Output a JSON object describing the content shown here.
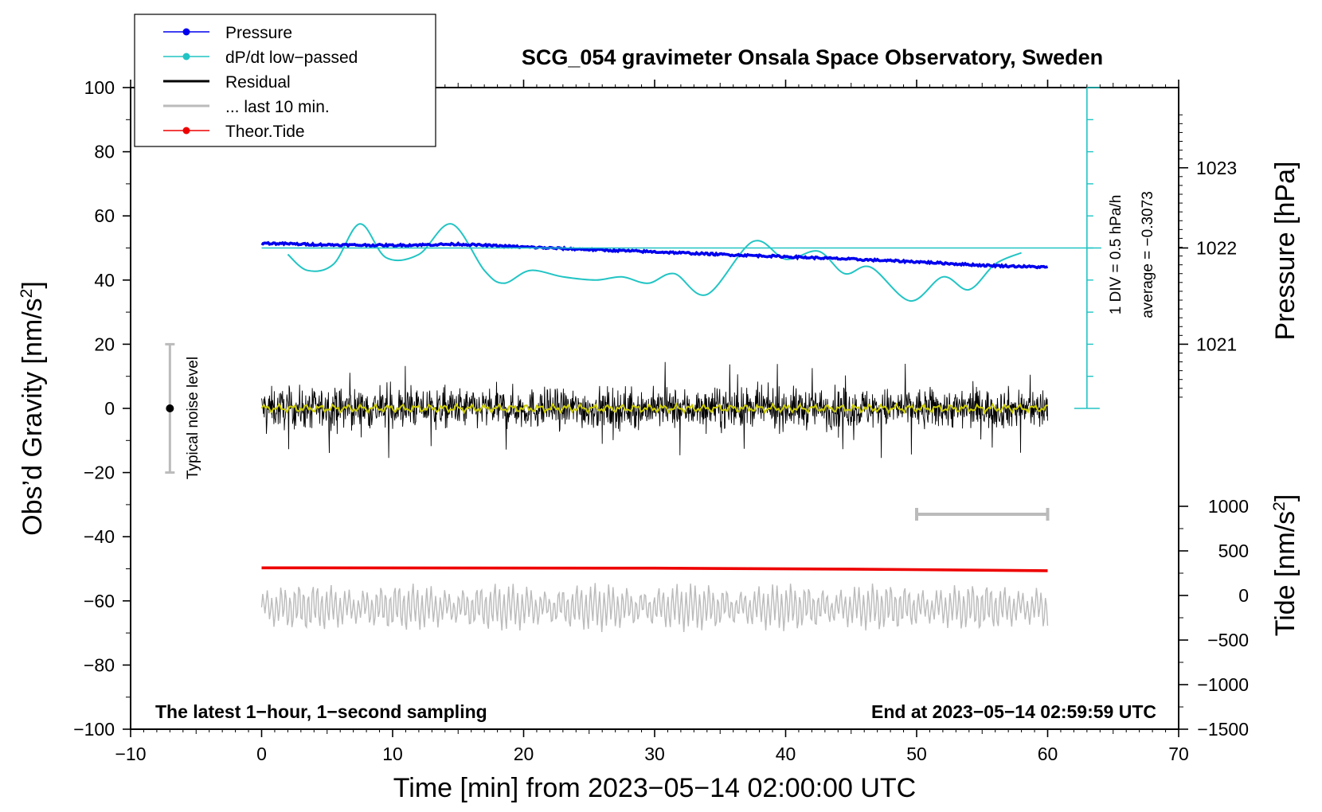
{
  "chart_data": {
    "type": "line",
    "title": "SCG_054 gravimeter Onsala Space Observatory, Sweden",
    "xlabel": "Time [min] from 2023−05−14 02:00:00 UTC",
    "ylabel_left": "Obs’d Gravity [nm/s",
    "ylabel_left_sup": "2",
    "ylabel_left_end": "]",
    "ylabel_right_pressure": "Pressure [hPa]",
    "ylabel_right_tide": "Tide [nm/s",
    "ylabel_right_tide_sup": "2",
    "ylabel_right_tide_end": "]",
    "xlim": [
      -10,
      70
    ],
    "ylim": [
      -100,
      100
    ],
    "x_ticks": [
      -10,
      0,
      10,
      20,
      30,
      40,
      50,
      60,
      70
    ],
    "x_tick_labels": [
      "−10",
      "0",
      "10",
      "20",
      "30",
      "40",
      "50",
      "60",
      "70"
    ],
    "y_ticks": [
      -100,
      -80,
      -60,
      -40,
      -20,
      0,
      20,
      40,
      60,
      80,
      100
    ],
    "y_tick_labels": [
      "−100",
      "−80",
      "−60",
      "−40",
      "−20",
      "0",
      "20",
      "40",
      "60",
      "80",
      "100"
    ],
    "pressure_axis": {
      "ticks": [
        1021,
        1022,
        1023
      ],
      "tick_labels": [
        "1021",
        "1022",
        "1023"
      ],
      "gravity_equivalent": [
        20,
        50,
        75
      ]
    },
    "tide_axis": {
      "ticks": [
        -1500,
        -1000,
        -500,
        0,
        500,
        1000
      ],
      "tick_labels": [
        "−1500",
        "−1000",
        "−500",
        "0",
        "500",
        "1000"
      ],
      "range": [
        -1500,
        1500
      ]
    },
    "legend": [
      {
        "label": "Pressure",
        "color": "#0000ee",
        "marker": "dot"
      },
      {
        "label": "dP/dt low−passed",
        "color": "#22c4c4",
        "marker": "dot"
      },
      {
        "label": "Residual",
        "color": "#000000",
        "marker": "none"
      },
      {
        "label": "... last 10 min.",
        "color": "#bbbbbb",
        "marker": "none"
      },
      {
        "label": "Theor.Tide",
        "color": "#ee0000",
        "marker": "dot"
      }
    ],
    "series": [
      {
        "name": "Pressure",
        "color": "#0000ee",
        "x": [
          0,
          5,
          10,
          15,
          20,
          25,
          30,
          35,
          40,
          45,
          50,
          55,
          60
        ],
        "y": [
          51.5,
          51,
          50.8,
          51.2,
          50.3,
          49.5,
          48.8,
          48,
          47.3,
          46.5,
          45.7,
          44.6,
          44
        ]
      },
      {
        "name": "dP/dt low−passed",
        "color": "#22c4c4",
        "x": [
          2,
          3.5,
          5.5,
          7.5,
          9.5,
          12,
          14.5,
          17,
          18.5,
          20.5,
          23,
          25.5,
          27.5,
          29.5,
          31.5,
          34,
          37.5,
          40,
          42.5,
          44.5,
          46.5,
          49.5,
          52,
          54,
          56,
          58
        ],
        "y": [
          48,
          43,
          45,
          57.5,
          47,
          48,
          57.5,
          43,
          39,
          43,
          41,
          40,
          41,
          39,
          42,
          35.5,
          52,
          46.5,
          49,
          42,
          44,
          33.5,
          41,
          37,
          45,
          48.5
        ]
      },
      {
        "name": "Residual",
        "color": "#000000",
        "x_range": [
          0,
          60
        ],
        "center": 0,
        "amplitude": 8
      },
      {
        "name": "Residual smoothed",
        "color": "#cccc00",
        "x_range": [
          0,
          60
        ],
        "center": 0,
        "amplitude": 1.5
      },
      {
        "name": "... last 10 min.",
        "color": "#bbbbbb",
        "x_range": [
          0,
          60
        ],
        "center": -62,
        "amplitude": 6
      },
      {
        "name": "Theor.Tide",
        "color": "#ee0000",
        "x": [
          0,
          30,
          45,
          60
        ],
        "y": [
          -49.7,
          -49.8,
          -50.1,
          -50.6
        ]
      }
    ],
    "noise_bar": {
      "label": "Typical noise level",
      "x": -7,
      "y": 0,
      "range": [
        -20,
        20
      ]
    },
    "dpdt_scale": {
      "label": "1 DIV = 0.5 hPa/h",
      "x": 63,
      "y_range": [
        0,
        100
      ],
      "baseline": 50
    },
    "average_label": "average = −0.3073",
    "last10_bar": {
      "x_range": [
        50,
        60
      ],
      "y": -33
    },
    "footer_left": "The latest 1−hour, 1−second sampling",
    "footer_right": "End at 2023−05−14 02:59:59 UTC"
  }
}
